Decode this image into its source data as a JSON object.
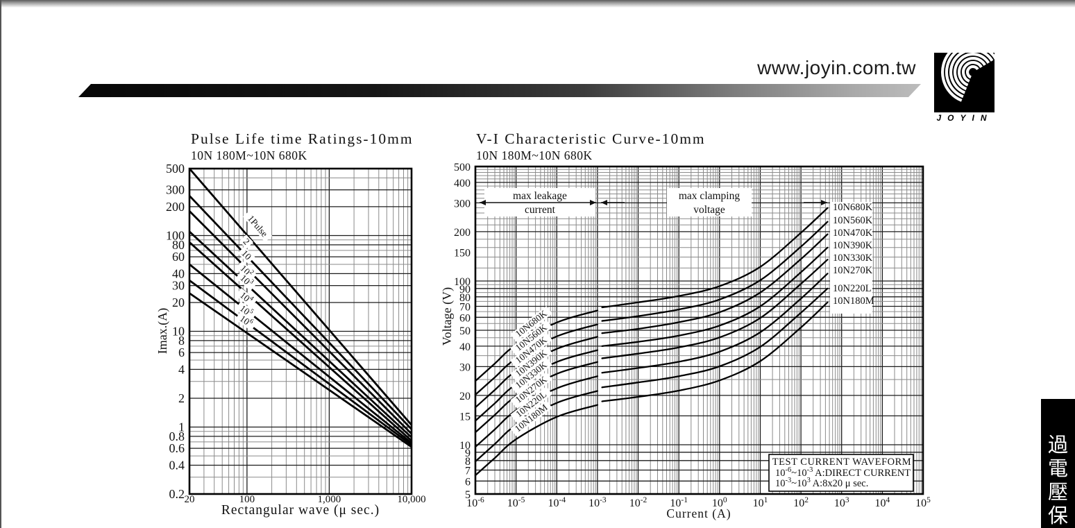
{
  "header": {
    "url": "www.joyin.com.tw",
    "logo_text": "JOYIN",
    "side_tab_chars": [
      "過",
      "電",
      "壓",
      "保"
    ]
  },
  "chart_data": [
    {
      "type": "line",
      "title": "Pulse Life time Ratings-10mm",
      "subtitle": "10N 180M~10N 680K",
      "xlabel": "Rectangular wave (μ sec.)",
      "ylabel": "Imax.(A)",
      "x_scale": "log",
      "y_scale": "log",
      "xlim": [
        20,
        10000
      ],
      "ylim": [
        0.2,
        500
      ],
      "x_ticks": [
        {
          "v": 20,
          "label": "20"
        },
        {
          "v": 100,
          "label": "100"
        },
        {
          "v": 1000,
          "label": "1,000"
        },
        {
          "v": 10000,
          "label": "10,000"
        }
      ],
      "y_ticks": [
        500,
        300,
        200,
        100,
        80,
        60,
        40,
        30,
        20,
        10,
        8,
        6,
        4,
        2,
        1,
        0.8,
        0.6,
        0.4,
        0.2
      ],
      "series": [
        {
          "name": [
            [
              "1Pulse",
              false
            ]
          ],
          "x": [
            20,
            10000
          ],
          "y": [
            500,
            1.05
          ]
        },
        {
          "name": [
            [
              "2",
              false
            ]
          ],
          "x": [
            20,
            10000
          ],
          "y": [
            260,
            0.95
          ]
        },
        {
          "name": [
            [
              "10",
              false
            ]
          ],
          "x": [
            20,
            10000
          ],
          "y": [
            180,
            0.85
          ]
        },
        {
          "name": [
            [
              "10",
              false
            ],
            [
              "2",
              true
            ]
          ],
          "x": [
            20,
            10000
          ],
          "y": [
            110,
            0.78
          ]
        },
        {
          "name": [
            [
              "10",
              false
            ],
            [
              "3",
              true
            ]
          ],
          "x": [
            20,
            10000
          ],
          "y": [
            85,
            0.72
          ]
        },
        {
          "name": [
            [
              "10",
              false
            ],
            [
              "4",
              true
            ]
          ],
          "x": [
            20,
            10000
          ],
          "y": [
            50,
            0.68
          ]
        },
        {
          "name": [
            [
              "10",
              false
            ],
            [
              "5",
              true
            ]
          ],
          "x": [
            20,
            10000
          ],
          "y": [
            34,
            0.65
          ]
        },
        {
          "name": [
            [
              "10",
              false
            ],
            [
              "6",
              true
            ]
          ],
          "x": [
            20,
            10000
          ],
          "y": [
            25,
            0.62
          ]
        }
      ]
    },
    {
      "type": "line",
      "title": "V-I Characteristic Curve-10mm",
      "subtitle": "10N 180M~10N 680K",
      "xlabel": "Current (A)",
      "ylabel": "Voltage (V)",
      "x_scale": "log",
      "y_scale": "log",
      "xlim": [
        1e-06,
        100000.0
      ],
      "ylim": [
        5,
        500
      ],
      "x_ticks": [
        {
          "v": 1e-06,
          "base": "10",
          "exp": "-6"
        },
        {
          "v": 1e-05,
          "base": "10",
          "exp": "-5"
        },
        {
          "v": 0.0001,
          "base": "10",
          "exp": "-4"
        },
        {
          "v": 0.001,
          "base": "10",
          "exp": "-3"
        },
        {
          "v": 0.01,
          "base": "10",
          "exp": "-2"
        },
        {
          "v": 0.1,
          "base": "10",
          "exp": "-1"
        },
        {
          "v": 1,
          "base": "10",
          "exp": "0"
        },
        {
          "v": 10,
          "base": "10",
          "exp": "1"
        },
        {
          "v": 100,
          "base": "10",
          "exp": "2"
        },
        {
          "v": 1000,
          "base": "10",
          "exp": "3"
        },
        {
          "v": 10000,
          "base": "10",
          "exp": "4"
        },
        {
          "v": 100000,
          "base": "10",
          "exp": "5"
        }
      ],
      "y_ticks": [
        500,
        400,
        300,
        200,
        150,
        100,
        90,
        80,
        70,
        60,
        50,
        40,
        30,
        20,
        15,
        10,
        9,
        8,
        7,
        6,
        5
      ],
      "series": [
        {
          "name": "10N680K",
          "segments": [
            {
              "x": [
                1e-06,
                3e-06,
                1e-05,
                0.0001,
                0.001
              ],
              "y": [
                24.5,
                31.3,
                40.8,
                55.8,
                66
              ]
            },
            {
              "x": [
                0.0013,
                0.01,
                0.1,
                1,
                10,
                100,
                450
              ],
              "y": [
                69,
                74,
                81,
                93,
                122,
                197,
                279
              ]
            }
          ]
        },
        {
          "name": "10N560K",
          "segments": [
            {
              "x": [
                1e-06,
                3e-06,
                1e-05,
                0.0001,
                0.001
              ],
              "y": [
                20.2,
                25.8,
                33.6,
                45.9,
                54.3
              ]
            },
            {
              "x": [
                0.0013,
                0.01,
                0.1,
                1,
                10,
                100,
                450
              ],
              "y": [
                57,
                61,
                67,
                77,
                101,
                162,
                230
              ]
            }
          ]
        },
        {
          "name": "10N470K",
          "segments": [
            {
              "x": [
                1e-06,
                3e-06,
                1e-05,
                0.0001,
                0.001
              ],
              "y": [
                16.9,
                21.6,
                28.2,
                38.5,
                45.6
              ]
            },
            {
              "x": [
                0.0013,
                0.01,
                0.1,
                1,
                10,
                100,
                450
              ],
              "y": [
                48,
                51,
                56,
                64.4,
                85,
                136,
                193
              ]
            }
          ]
        },
        {
          "name": "10N390K",
          "segments": [
            {
              "x": [
                1e-06,
                3e-06,
                1e-05,
                0.0001,
                0.001
              ],
              "y": [
                14,
                17.9,
                23.4,
                32,
                37.8
              ]
            },
            {
              "x": [
                0.0013,
                0.01,
                0.1,
                1,
                10,
                100,
                450
              ],
              "y": [
                40,
                42.5,
                46.4,
                53.4,
                70,
                113,
                160
              ]
            }
          ]
        },
        {
          "name": "10N330K",
          "segments": [
            {
              "x": [
                1e-06,
                3e-06,
                1e-05,
                0.0001,
                0.001
              ],
              "y": [
                11.9,
                15.2,
                19.8,
                27.1,
                32
              ]
            },
            {
              "x": [
                0.0013,
                0.01,
                0.1,
                1,
                10,
                100,
                450
              ],
              "y": [
                33.7,
                36,
                39.3,
                45.2,
                59.4,
                96,
                135
              ]
            }
          ]
        },
        {
          "name": "10N270K",
          "segments": [
            {
              "x": [
                1e-06,
                3e-06,
                1e-05,
                0.0001,
                0.001
              ],
              "y": [
                9.7,
                12.4,
                16.2,
                22.1,
                26.2
              ]
            },
            {
              "x": [
                0.0013,
                0.01,
                0.1,
                1,
                10,
                100,
                450
              ],
              "y": [
                27.5,
                29.4,
                32.1,
                37,
                48.6,
                78,
                111
              ]
            }
          ]
        },
        {
          "name": "10N220L",
          "segments": [
            {
              "x": [
                1e-06,
                3e-06,
                1e-05,
                0.0001,
                0.001
              ],
              "y": [
                7.9,
                10.1,
                13.2,
                18,
                21.3
              ]
            },
            {
              "x": [
                0.0013,
                0.01,
                0.1,
                1,
                10,
                100,
                450
              ],
              "y": [
                22.4,
                24,
                26.2,
                30.1,
                39.6,
                64,
                90
              ]
            }
          ]
        },
        {
          "name": "10N180M",
          "segments": [
            {
              "x": [
                1e-06,
                3e-06,
                1e-05,
                0.0001,
                0.001
              ],
              "y": [
                6.5,
                8.3,
                10.8,
                14.8,
                17.5
              ]
            },
            {
              "x": [
                0.0013,
                0.01,
                0.1,
                1,
                10,
                100,
                450
              ],
              "y": [
                18.4,
                19.6,
                21.4,
                24.7,
                32.4,
                52,
                74
              ]
            }
          ]
        }
      ],
      "annotations": {
        "leakage": [
          "max leakage",
          "current"
        ],
        "clamping": [
          "max clamping",
          "voltage"
        ],
        "test_box": [
          [
            [
              "TEST CURRENT WAVEFORM",
              false
            ]
          ],
          [
            [
              "10",
              false
            ],
            [
              "-6",
              true
            ],
            [
              "~10",
              false
            ],
            [
              "-3",
              true
            ],
            [
              " A:DIRECT CURRENT",
              false
            ]
          ],
          [
            [
              "10",
              false
            ],
            [
              "-3",
              true
            ],
            [
              "~10",
              false
            ],
            [
              "3",
              true
            ],
            [
              " A:8x20 μ sec.",
              false
            ]
          ]
        ]
      }
    }
  ]
}
